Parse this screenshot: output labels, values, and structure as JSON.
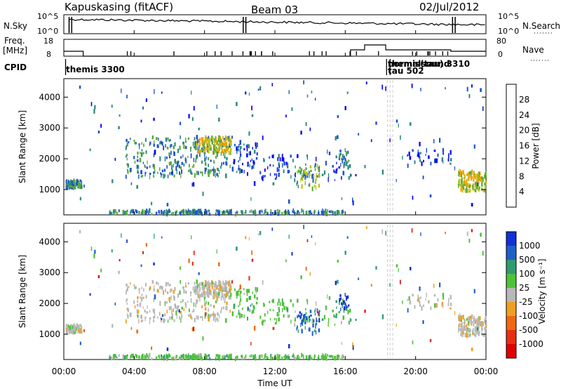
{
  "header": {
    "radar": "Kapuskasing (fitACF)",
    "beam": "Beam 03",
    "date": "02/Jul/2012"
  },
  "chart_data": {
    "type": "heatmap",
    "time_range": [
      "00:00",
      "24:00"
    ],
    "x_ticks": [
      "00:00",
      "04:00",
      "08:00",
      "12:00",
      "16:00",
      "20:00",
      "00:00"
    ],
    "xlabel": "Time UT",
    "ylabel": "Slant Range [km]",
    "range_ylim": [
      180,
      4600
    ],
    "range_ticks": [
      "1000",
      "2000",
      "3000",
      "4000"
    ],
    "top_panels": {
      "nsky_label": "N.Sky",
      "nsky_ticks": [
        "10^5",
        "10^0"
      ],
      "nsearch_label": "N.Search",
      "nsearch_ticks": [
        "10^5",
        "10^0"
      ],
      "freq_label_1": "Freq.",
      "freq_label_2": "[MHz]",
      "freq_ticks": [
        "18",
        "8"
      ],
      "nave_label": "Nave",
      "nave_ticks": [
        "80",
        "0"
      ],
      "cpid_label": "CPID",
      "cpid_texts": [
        "themis 3300",
        "themis(tau) 3310",
        "normalsound",
        "tau 502"
      ]
    },
    "power": {
      "colorbar_label": "Power [dB]",
      "colorbar_ticks": [
        "4",
        "8",
        "12",
        "16",
        "20",
        "24",
        "28"
      ],
      "colors": [
        "#0000ff",
        "#1a50d6",
        "#2e8a80",
        "#5aaa33",
        "#bcc41e",
        "#f0a000",
        "#f05000",
        "#e00000"
      ]
    },
    "velocity": {
      "colorbar_label": "Velocity [m s⁻¹]",
      "colorbar_ticks": [
        "1000",
        "500",
        "100",
        "25",
        "-25",
        "-100",
        "-500",
        "-1000"
      ],
      "colors": [
        "#1030d8",
        "#1e60c8",
        "#2f9c70",
        "#4fc23a",
        "#b8b8b8",
        "#f0a020",
        "#f06810",
        "#e83010",
        "#e00000"
      ]
    }
  }
}
